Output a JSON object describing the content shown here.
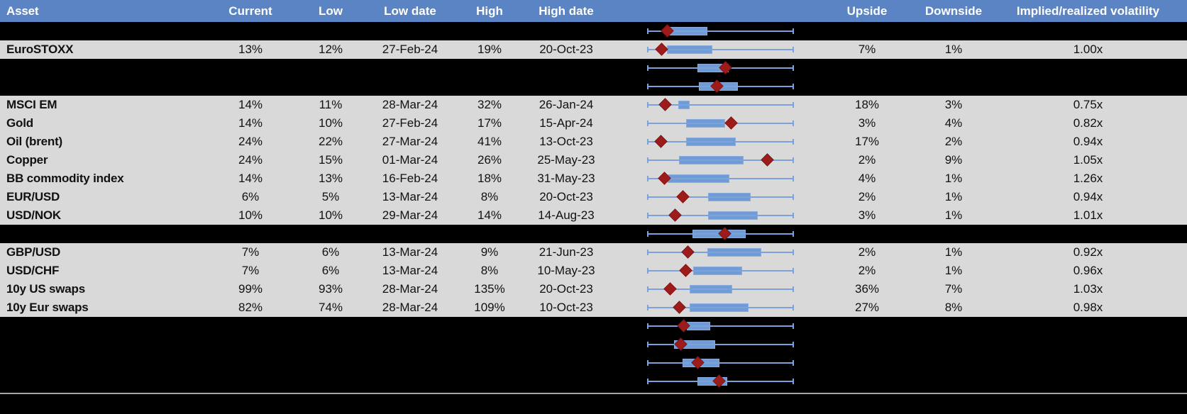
{
  "colors": {
    "header_bg": "#5b84c4",
    "header_text": "#ffffff",
    "row_bg": "#d9d9d9",
    "hidden_row_bg": "#000000",
    "whisker_blue": "#7ba3d9",
    "box_fill_blue": "#6f9bd6",
    "box_border_blue": "#8aabdc",
    "marker_red": "#9e1b1b",
    "divider_gray": "#a6a6a6"
  },
  "chart_data": {
    "type": "table",
    "title": "",
    "columns": [
      "Asset",
      "Current",
      "Low",
      "Low date",
      "High",
      "High date",
      "",
      "Upside",
      "Downside",
      "Implied/realized volatility"
    ],
    "range_plot_note": "Each row shows a box-whisker range plot; box_start/box_end/marker are estimated percent positions (0-100) along the fixed low-high whisker span; red diamond = current level",
    "rows": [
      {
        "hidden": true,
        "asset": "",
        "current": "",
        "low": "",
        "low_date": "",
        "high": "",
        "high_date": "",
        "upside": "",
        "downside": "",
        "implied_realized": "",
        "plot": {
          "box_start": 14.6,
          "box_end": 41.0,
          "marker": 13.2
        }
      },
      {
        "hidden": false,
        "asset": "EuroSTOXX",
        "current": "13%",
        "low": "12%",
        "low_date": "27-Feb-24",
        "high": "19%",
        "high_date": "20-Oct-23",
        "upside": "7%",
        "downside": "1%",
        "implied_realized": "1.00x",
        "plot": {
          "box_start": 13.2,
          "box_end": 44.5,
          "marker": 9.6
        }
      },
      {
        "hidden": true,
        "asset": "",
        "current": "",
        "low": "",
        "low_date": "",
        "high": "",
        "high_date": "",
        "upside": "",
        "downside": "",
        "implied_realized": "",
        "plot": {
          "box_start": 34.3,
          "box_end": 55.5,
          "marker": 53.5
        }
      },
      {
        "hidden": true,
        "asset": "",
        "current": "",
        "low": "",
        "low_date": "",
        "high": "",
        "high_date": "",
        "upside": "",
        "downside": "",
        "implied_realized": "",
        "plot": {
          "box_start": 35.1,
          "box_end": 62.0,
          "marker": 47.7
        }
      },
      {
        "hidden": false,
        "asset": "MSCI EM",
        "current": "14%",
        "low": "11%",
        "low_date": "28-Mar-24",
        "high": "32%",
        "high_date": "26-Jan-24",
        "upside": "18%",
        "downside": "3%",
        "implied_realized": "0.75x",
        "plot": {
          "box_start": 21.0,
          "box_end": 28.9,
          "marker": 12.0
        }
      },
      {
        "hidden": false,
        "asset": "Gold",
        "current": "14%",
        "low": "10%",
        "low_date": "27-Feb-24",
        "high": "17%",
        "high_date": "15-Apr-24",
        "upside": "3%",
        "downside": "4%",
        "implied_realized": "0.82x",
        "plot": {
          "box_start": 26.2,
          "box_end": 53.0,
          "marker": 57.4
        }
      },
      {
        "hidden": false,
        "asset": "Oil (brent)",
        "current": "24%",
        "low": "22%",
        "low_date": "27-Mar-24",
        "high": "41%",
        "high_date": "13-Oct-23",
        "upside": "17%",
        "downside": "2%",
        "implied_realized": "0.94x",
        "plot": {
          "box_start": 26.5,
          "box_end": 60.3,
          "marker": 8.8
        }
      },
      {
        "hidden": false,
        "asset": "Copper",
        "current": "24%",
        "low": "15%",
        "low_date": "01-Mar-24",
        "high": "26%",
        "high_date": "25-May-23",
        "upside": "2%",
        "downside": "9%",
        "implied_realized": "1.05x",
        "plot": {
          "box_start": 21.3,
          "box_end": 66.0,
          "marker": 82.3
        }
      },
      {
        "hidden": false,
        "asset": "BB commodity index",
        "current": "14%",
        "low": "13%",
        "low_date": "16-Feb-24",
        "high": "18%",
        "high_date": "31-May-23",
        "upside": "4%",
        "downside": "1%",
        "implied_realized": "1.26x",
        "plot": {
          "box_start": 13.7,
          "box_end": 56.0,
          "marker": 11.6
        }
      },
      {
        "hidden": false,
        "asset": "EUR/USD",
        "current": "6%",
        "low": "5%",
        "low_date": "13-Mar-24",
        "high": "8%",
        "high_date": "20-Oct-23",
        "upside": "2%",
        "downside": "1%",
        "implied_realized": "0.94x",
        "plot": {
          "box_start": 41.6,
          "box_end": 70.6,
          "marker": 24.0
        }
      },
      {
        "hidden": false,
        "asset": "USD/NOK",
        "current": "10%",
        "low": "10%",
        "low_date": "29-Mar-24",
        "high": "14%",
        "high_date": "14-Aug-23",
        "upside": "3%",
        "downside": "1%",
        "implied_realized": "1.01x",
        "plot": {
          "box_start": 41.3,
          "box_end": 75.5,
          "marker": 18.9
        }
      },
      {
        "hidden": true,
        "asset": "",
        "current": "",
        "low": "",
        "low_date": "",
        "high": "",
        "high_date": "",
        "upside": "",
        "downside": "",
        "implied_realized": "",
        "plot": {
          "box_start": 30.7,
          "box_end": 67.3,
          "marker": 53.0
        }
      },
      {
        "hidden": false,
        "asset": "GBP/USD",
        "current": "7%",
        "low": "6%",
        "low_date": "13-Mar-24",
        "high": "9%",
        "high_date": "21-Jun-23",
        "upside": "2%",
        "downside": "1%",
        "implied_realized": "0.92x",
        "plot": {
          "box_start": 40.8,
          "box_end": 78.2,
          "marker": 27.8
        }
      },
      {
        "hidden": false,
        "asset": "USD/CHF",
        "current": "7%",
        "low": "6%",
        "low_date": "13-Mar-24",
        "high": "8%",
        "high_date": "10-May-23",
        "upside": "2%",
        "downside": "1%",
        "implied_realized": "0.96x",
        "plot": {
          "box_start": 31.1,
          "box_end": 64.9,
          "marker": 26.2
        }
      },
      {
        "hidden": false,
        "asset": "10y US swaps",
        "current": "99%",
        "low": "93%",
        "low_date": "28-Mar-24",
        "high": "135%",
        "high_date": "20-Oct-23",
        "upside": "36%",
        "downside": "7%",
        "implied_realized": "1.03x",
        "plot": {
          "box_start": 28.6,
          "box_end": 57.9,
          "marker": 15.6
        }
      },
      {
        "hidden": false,
        "asset": "10y Eur swaps",
        "current": "82%",
        "low": "74%",
        "low_date": "28-Mar-24",
        "high": "109%",
        "high_date": "10-Oct-23",
        "upside": "27%",
        "downside": "8%",
        "implied_realized": "0.98x",
        "plot": {
          "box_start": 28.6,
          "box_end": 69.3,
          "marker": 21.8
        }
      },
      {
        "hidden": true,
        "asset": "",
        "current": "",
        "low": "",
        "low_date": "",
        "high": "",
        "high_date": "",
        "upside": "",
        "downside": "",
        "implied_realized": "",
        "plot": {
          "box_start": 27.0,
          "box_end": 42.9,
          "marker": 24.5
        }
      },
      {
        "hidden": true,
        "asset": "",
        "current": "",
        "low": "",
        "low_date": "",
        "high": "",
        "high_date": "",
        "upside": "",
        "downside": "",
        "implied_realized": "",
        "plot": {
          "box_start": 18.0,
          "box_end": 46.2,
          "marker": 22.6
        }
      },
      {
        "hidden": true,
        "asset": "",
        "current": "",
        "low": "",
        "low_date": "",
        "high": "",
        "high_date": "",
        "upside": "",
        "downside": "",
        "implied_realized": "",
        "plot": {
          "box_start": 24.0,
          "box_end": 49.4,
          "marker": 34.3
        }
      },
      {
        "hidden": true,
        "asset": "",
        "current": "",
        "low": "",
        "low_date": "",
        "high": "",
        "high_date": "",
        "upside": "",
        "downside": "",
        "implied_realized": "",
        "plot": {
          "box_start": 34.3,
          "box_end": 54.6,
          "marker": 48.9
        }
      }
    ]
  }
}
